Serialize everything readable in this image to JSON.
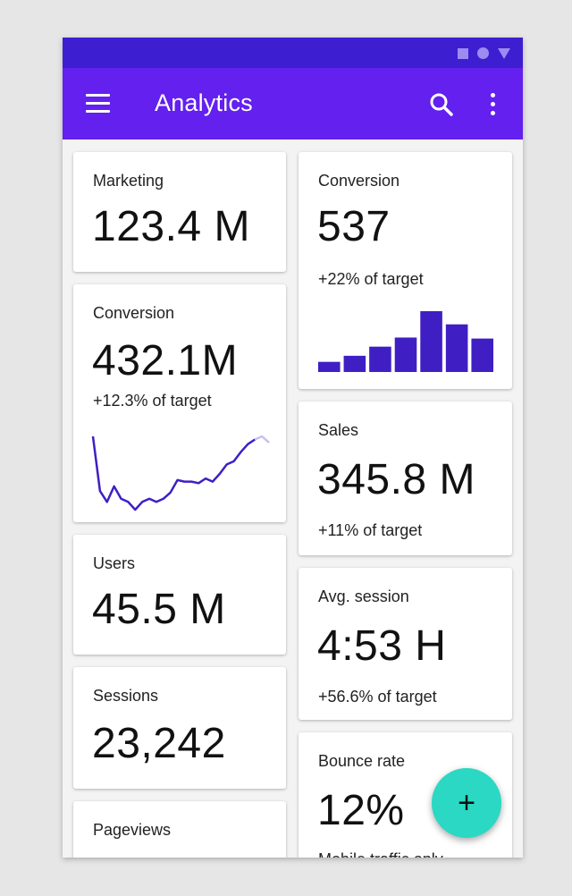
{
  "app": {
    "title": "Analytics"
  },
  "colors": {
    "status_bar": "#3d1ed1",
    "app_bar": "#6320ee",
    "chart": "#3f1fc4",
    "fab": "#2ad8c3"
  },
  "icons": {
    "menu": "menu-icon",
    "search": "search-icon",
    "more": "more-vert-icon",
    "fab": "plus-icon"
  },
  "cards": {
    "marketing": {
      "label": "Marketing",
      "value": "123.4 M"
    },
    "conversion_left": {
      "label": "Conversion",
      "value": "432.1M",
      "sub": "+12.3% of target"
    },
    "users": {
      "label": "Users",
      "value": "45.5 M"
    },
    "sessions": {
      "label": "Sessions",
      "value": "23,242"
    },
    "pageviews": {
      "label": "Pageviews"
    },
    "conversion_right": {
      "label": "Conversion",
      "value": "537",
      "sub": "+22% of target"
    },
    "sales": {
      "label": "Sales",
      "value": "345.8 M",
      "sub": "+11% of target"
    },
    "avg_session": {
      "label": "Avg. session",
      "value": "4:53 H",
      "sub": "+56.6% of target"
    },
    "bounce_rate": {
      "label": "Bounce rate",
      "value": "12%",
      "sub": "Mobile traffic only"
    }
  },
  "fab": {
    "label": "+"
  },
  "chart_data": [
    {
      "type": "line",
      "values": [
        50,
        15,
        8,
        18,
        10,
        8,
        3,
        8,
        10,
        8,
        10,
        14,
        22,
        21,
        21,
        20,
        23,
        21,
        26,
        32,
        34,
        40,
        45,
        48,
        50,
        46
      ]
    },
    {
      "type": "bar",
      "values": [
        10,
        16,
        25,
        34,
        60,
        47,
        33
      ]
    }
  ]
}
